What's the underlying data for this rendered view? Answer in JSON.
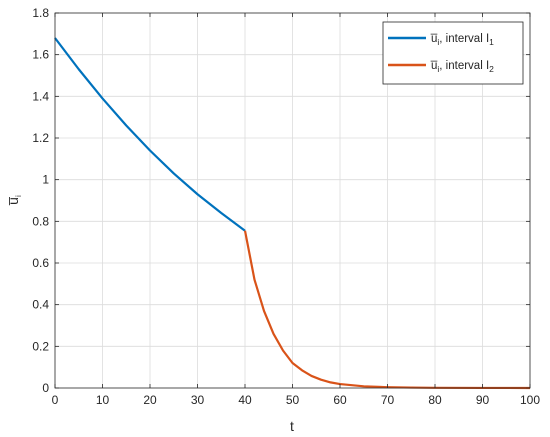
{
  "chart_data": {
    "type": "line",
    "xlabel": "t",
    "ylabel": "u̅ i",
    "ylabel_main": "u̅",
    "ylabel_sub": "i",
    "xlim": [
      0,
      100
    ],
    "ylim": [
      0,
      1.8
    ],
    "grid": true,
    "legend_position": "top-right",
    "x_ticks": [
      "0",
      "10",
      "20",
      "30",
      "40",
      "50",
      "60",
      "70",
      "80",
      "90",
      "100"
    ],
    "y_ticks": [
      "0",
      "0.2",
      "0.4",
      "0.6",
      "0.8",
      "1",
      "1.2",
      "1.4",
      "1.6",
      "1.8"
    ],
    "series": [
      {
        "name": "u̅i, interval I1",
        "legend_main": "u̅",
        "legend_sub1": "i",
        "legend_mid": ", interval I",
        "legend_sub2": "1",
        "color": "#0072BD",
        "x": [
          0,
          5,
          10,
          15,
          20,
          25,
          30,
          35,
          40
        ],
        "y": [
          1.68,
          1.53,
          1.39,
          1.26,
          1.14,
          1.03,
          0.93,
          0.84,
          0.755
        ]
      },
      {
        "name": "u̅i, interval I2",
        "legend_main": "u̅",
        "legend_sub1": "i",
        "legend_mid": ", interval I",
        "legend_sub2": "2",
        "color": "#D95319",
        "x": [
          40,
          42,
          44,
          46,
          48,
          50,
          52,
          54,
          56,
          58,
          60,
          65,
          70,
          75,
          80,
          90,
          100
        ],
        "y": [
          0.755,
          0.52,
          0.37,
          0.26,
          0.18,
          0.12,
          0.085,
          0.058,
          0.04,
          0.027,
          0.019,
          0.008,
          0.004,
          0.002,
          0.001,
          0.0003,
          0.0001
        ]
      }
    ]
  }
}
